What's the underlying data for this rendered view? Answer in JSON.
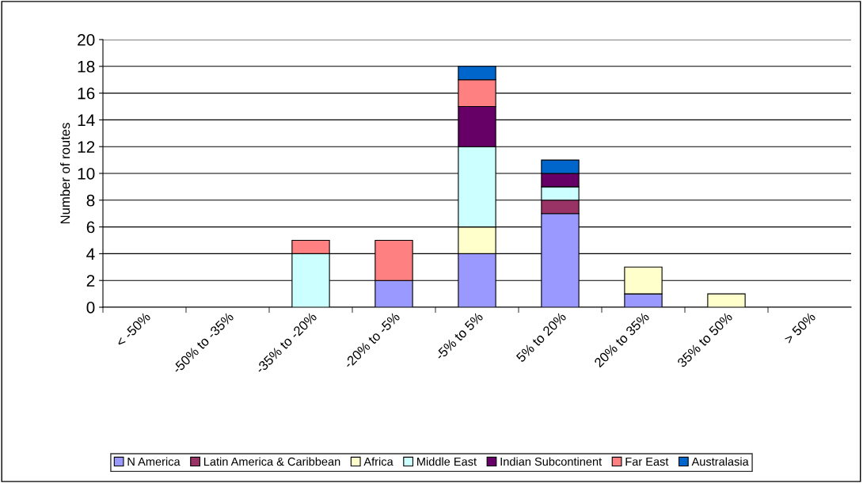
{
  "chart_data": {
    "type": "bar",
    "stacked": true,
    "ylabel": "Number of routes",
    "categories": [
      "< -50%",
      "-50% to -35%",
      "-35% to -20%",
      "-20% to -5%",
      "-5% to 5%",
      "5% to 20%",
      "20% to 35%",
      "35% to 50%",
      "> 50%"
    ],
    "series": [
      {
        "name": "N America",
        "color": "#9999ff",
        "values": [
          0,
          0,
          0,
          2,
          4,
          7,
          1,
          0,
          0
        ]
      },
      {
        "name": "Latin America & Caribbean",
        "color": "#993366",
        "values": [
          0,
          0,
          0,
          0,
          0,
          1,
          0,
          0,
          0
        ]
      },
      {
        "name": "Africa",
        "color": "#ffffcc",
        "values": [
          0,
          0,
          0,
          0,
          2,
          0,
          2,
          1,
          0
        ]
      },
      {
        "name": "Middle East",
        "color": "#ccffff",
        "values": [
          0,
          0,
          4,
          0,
          6,
          1,
          0,
          0,
          0
        ]
      },
      {
        "name": "Indian Subcontinent",
        "color": "#660066",
        "values": [
          0,
          0,
          0,
          0,
          3,
          1,
          0,
          0,
          0
        ]
      },
      {
        "name": "Far East",
        "color": "#ff8080",
        "values": [
          0,
          0,
          1,
          3,
          2,
          0,
          0,
          0,
          0
        ]
      },
      {
        "name": "Australasia",
        "color": "#0066cc",
        "values": [
          0,
          0,
          0,
          0,
          1,
          1,
          0,
          0,
          0
        ]
      }
    ],
    "ylim": [
      0,
      20
    ],
    "yticks": [
      0,
      2,
      4,
      6,
      8,
      10,
      12,
      14,
      16,
      18,
      20
    ],
    "grid": "y",
    "legend": "bottom"
  }
}
